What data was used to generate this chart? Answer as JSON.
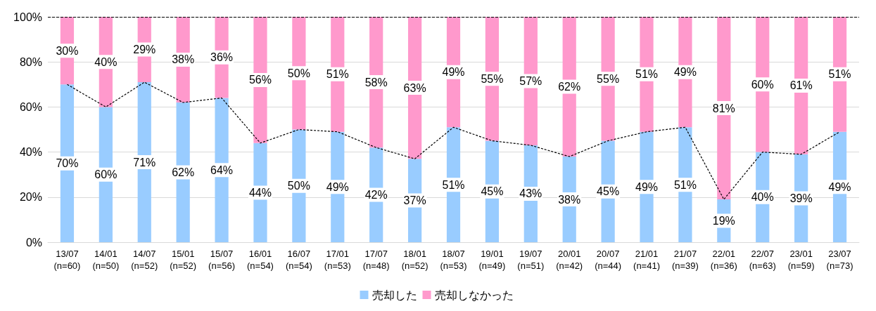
{
  "chart_data": {
    "type": "bar",
    "stacked": true,
    "categories": [
      "13/07\n(n=60)",
      "14/01\n(n=50)",
      "14/07\n(n=52)",
      "15/01\n(n=52)",
      "15/07\n(n=56)",
      "16/01\n(n=54)",
      "16/07\n(n=54)",
      "17/01\n(n=53)",
      "17/07\n(n=48)",
      "18/01\n(n=52)",
      "18/07\n(n=53)",
      "19/01\n(n=49)",
      "19/07\n(n=51)",
      "20/01\n(n=42)",
      "20/07\n(n=44)",
      "21/01\n(n=41)",
      "21/07\n(n=39)",
      "22/01\n(n=36)",
      "22/07\n(n=63)",
      "23/01\n(n=59)",
      "23/07\n(n=73)"
    ],
    "series": [
      {
        "name": "売却した",
        "color": "#99ccff",
        "values": [
          70,
          60,
          71,
          62,
          64,
          44,
          50,
          49,
          42,
          37,
          51,
          45,
          43,
          38,
          45,
          49,
          51,
          19,
          40,
          39,
          49
        ],
        "value_labels": [
          "70%",
          "60%",
          "71%",
          "62%",
          "64%",
          "44%",
          "50%",
          "49%",
          "42%",
          "37%",
          "51%",
          "45%",
          "43%",
          "38%",
          "45%",
          "49%",
          "51%",
          "19%",
          "40%",
          "39%",
          "49%"
        ]
      },
      {
        "name": "売却しなかった",
        "color": "#ff99cc",
        "values": [
          30,
          40,
          29,
          38,
          36,
          56,
          50,
          51,
          58,
          63,
          49,
          55,
          57,
          62,
          55,
          51,
          49,
          81,
          60,
          61,
          51
        ],
        "value_labels": [
          "30%",
          "40%",
          "29%",
          "38%",
          "36%",
          "56%",
          "50%",
          "51%",
          "58%",
          "63%",
          "49%",
          "55%",
          "57%",
          "62%",
          "55%",
          "51%",
          "49%",
          "81%",
          "60%",
          "61%",
          "51%"
        ]
      },
      {
        "type": "line",
        "color": "#000000",
        "line_style": "dashed",
        "marker": "none",
        "values": [
          70,
          60,
          71,
          62,
          64,
          44,
          50,
          49,
          42,
          37,
          51,
          45,
          43,
          38,
          45,
          49,
          51,
          19,
          40,
          39,
          49
        ]
      }
    ],
    "ylim": [
      0,
      100
    ],
    "yticks": [
      {
        "value": 0,
        "label": "0%"
      },
      {
        "value": 20,
        "label": "20%"
      },
      {
        "value": 40,
        "label": "40%"
      },
      {
        "value": 60,
        "label": "60%"
      },
      {
        "value": 80,
        "label": "80%"
      },
      {
        "value": 100,
        "label": "100%"
      }
    ],
    "ref_lines": [
      {
        "axis": "y",
        "value": 100,
        "color": "#000000",
        "line_style": "dashed"
      }
    ],
    "grid": "y",
    "legend": "bottom"
  }
}
